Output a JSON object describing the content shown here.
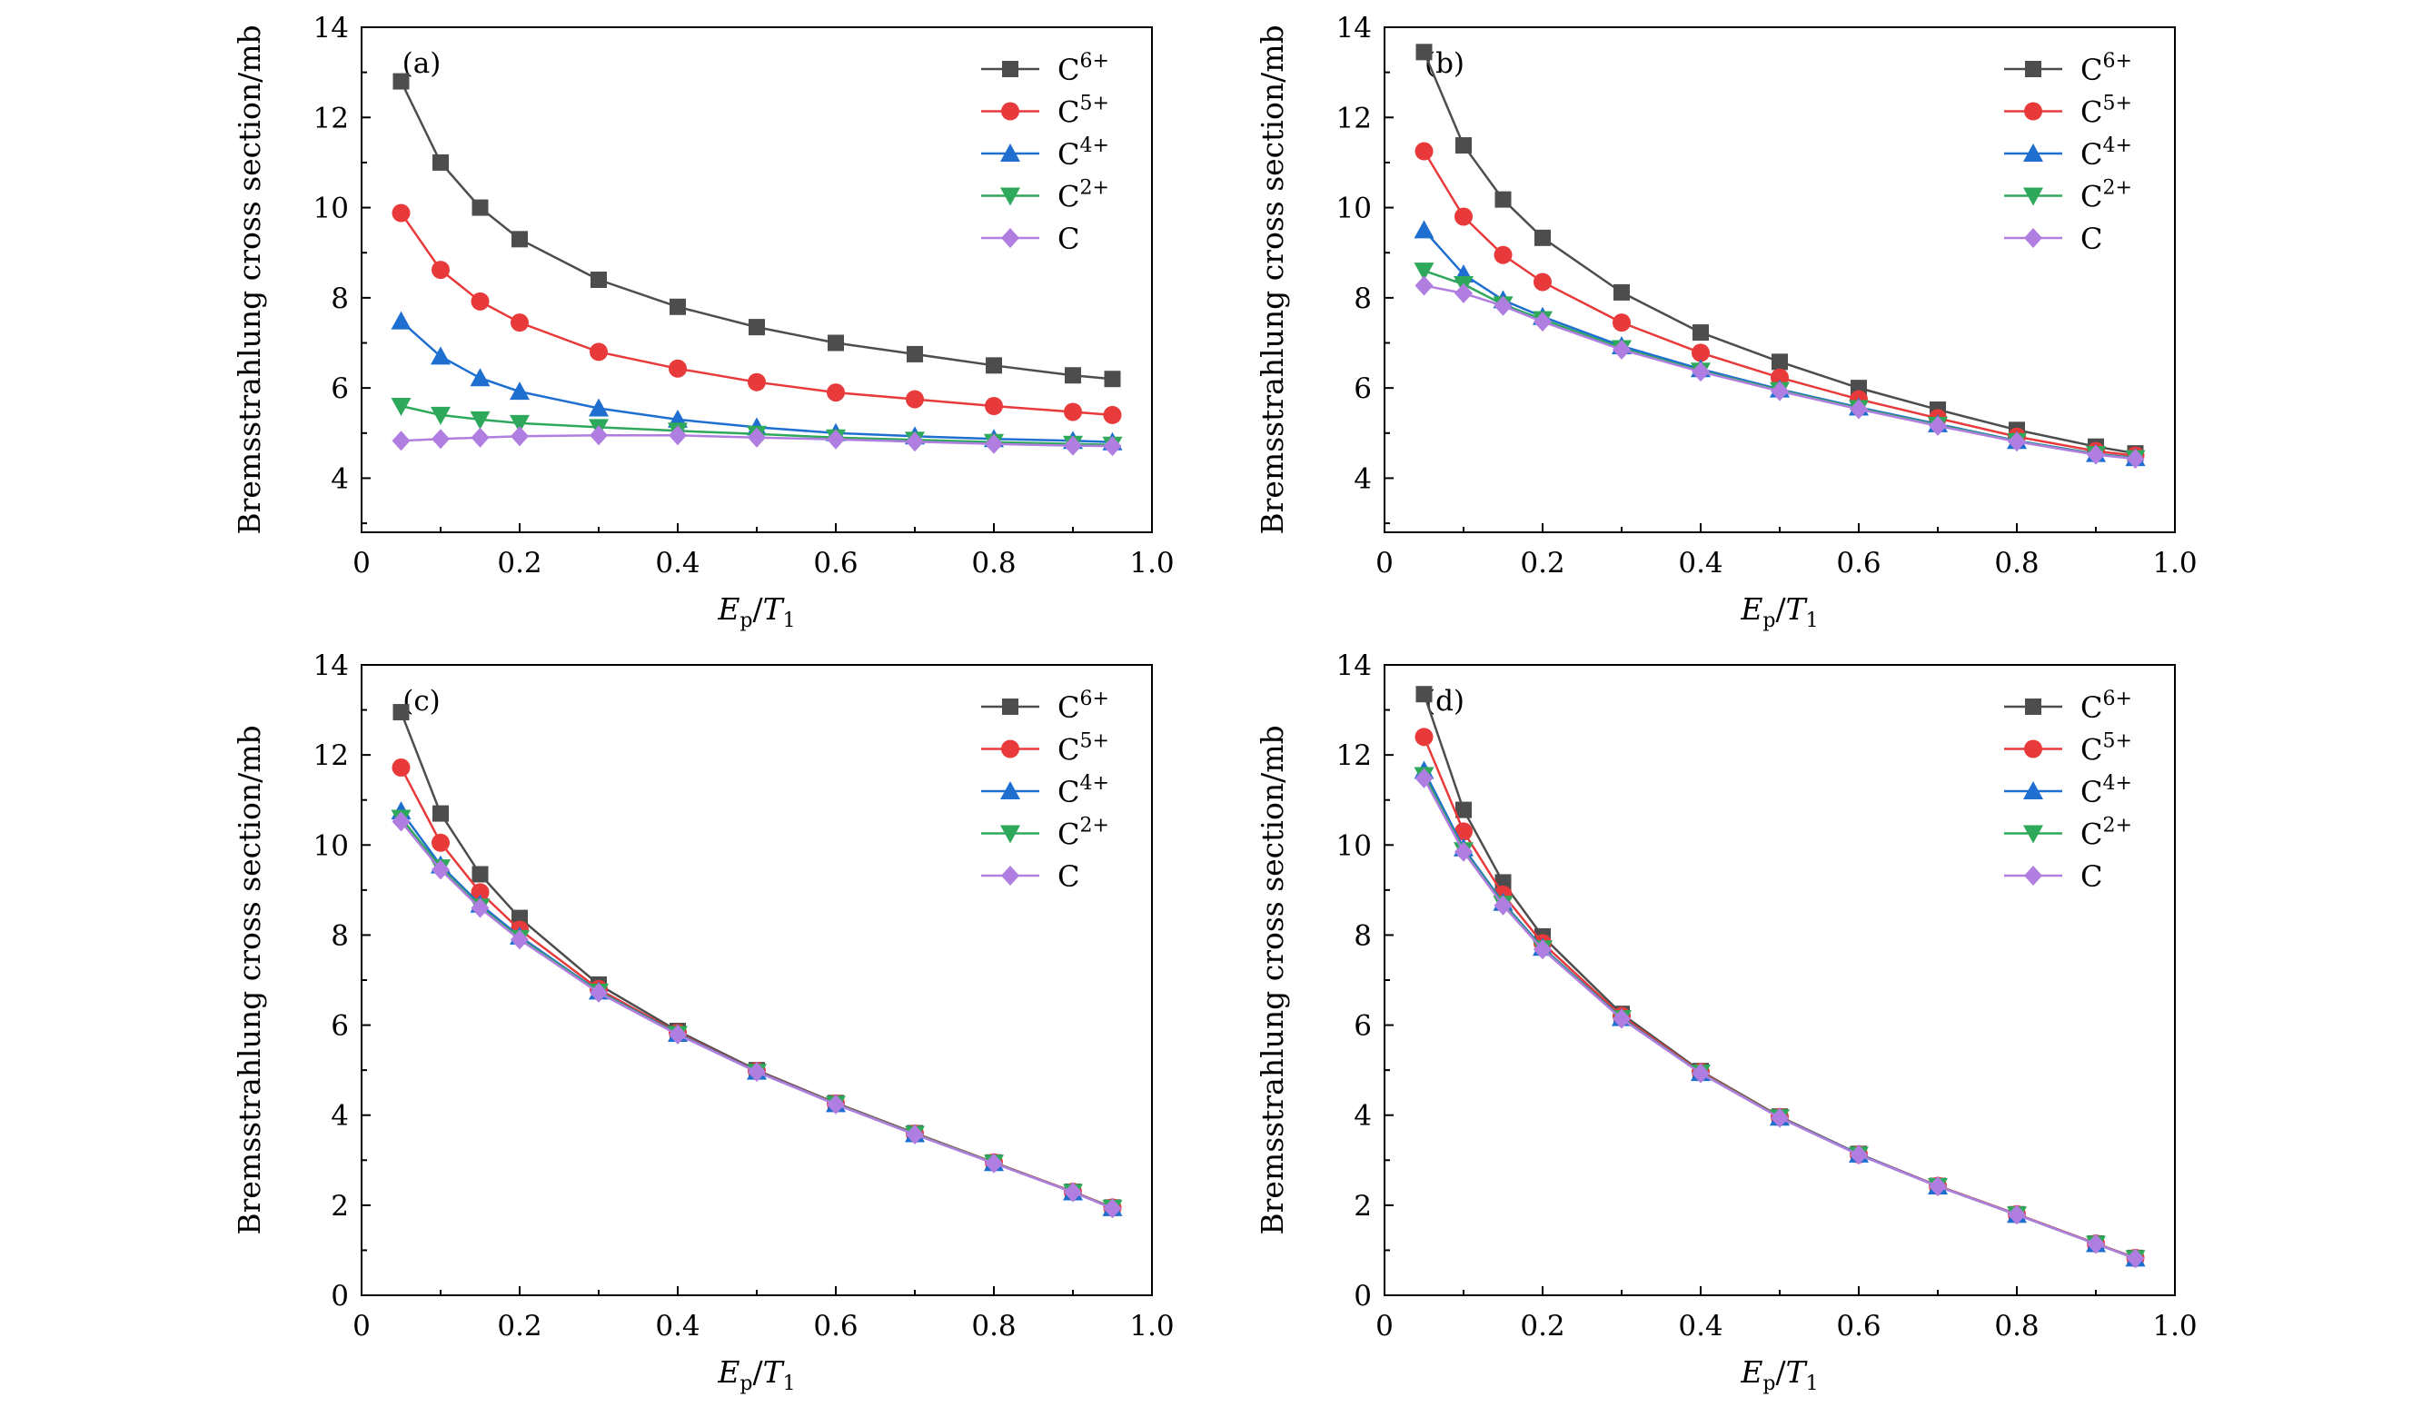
{
  "figure": {
    "panels": [
      "(a)",
      "(b)",
      "(c)",
      "(d)"
    ]
  },
  "chart_data": [
    {
      "type": "line",
      "panel_label": "(a)",
      "xlabel": "Ep/T1",
      "xlabel_parts": {
        "main": "E",
        "main_sub": "p",
        "sep": "/",
        "den": "T",
        "den_sub": "1"
      },
      "ylabel": "Bremsstrahlung cross section/mb",
      "xlim": [
        0,
        1.0
      ],
      "ylim": [
        2.8,
        14
      ],
      "x_ticks": [
        "0",
        "0.2",
        "0.4",
        "0.6",
        "0.8",
        "1.0"
      ],
      "y_ticks": [
        "4",
        "6",
        "8",
        "10",
        "12",
        "14"
      ],
      "legend_position": "top-right",
      "x": [
        0.05,
        0.1,
        0.15,
        0.2,
        0.3,
        0.4,
        0.5,
        0.6,
        0.7,
        0.8,
        0.9,
        0.95
      ],
      "series": [
        {
          "name": "C6+",
          "base": "C",
          "sup": "6+",
          "color": "#4d4d4d",
          "marker": "square",
          "values": [
            12.8,
            11.0,
            10.0,
            9.3,
            8.4,
            7.8,
            7.35,
            7.0,
            6.75,
            6.5,
            6.28,
            6.2
          ]
        },
        {
          "name": "C5+",
          "base": "C",
          "sup": "5+",
          "color": "#e83a3a",
          "marker": "circle",
          "values": [
            9.88,
            8.62,
            7.92,
            7.45,
            6.8,
            6.43,
            6.13,
            5.9,
            5.75,
            5.6,
            5.47,
            5.4
          ]
        },
        {
          "name": "C4+",
          "base": "C",
          "sup": "4+",
          "color": "#1f6fd1",
          "marker": "triangle-up",
          "values": [
            7.48,
            6.7,
            6.22,
            5.92,
            5.55,
            5.3,
            5.13,
            5.0,
            4.93,
            4.87,
            4.83,
            4.8
          ]
        },
        {
          "name": "C2+",
          "base": "C",
          "sup": "2+",
          "color": "#2ea85a",
          "marker": "triangle-down",
          "values": [
            5.6,
            5.4,
            5.3,
            5.22,
            5.13,
            5.05,
            4.98,
            4.9,
            4.85,
            4.8,
            4.76,
            4.74
          ]
        },
        {
          "name": "C",
          "base": "C",
          "sup": "",
          "color": "#b07ee0",
          "marker": "diamond",
          "values": [
            4.83,
            4.87,
            4.9,
            4.93,
            4.95,
            4.95,
            4.9,
            4.86,
            4.81,
            4.76,
            4.72,
            4.71
          ]
        }
      ]
    },
    {
      "type": "line",
      "panel_label": "(b)",
      "xlabel": "Ep/T1",
      "xlabel_parts": {
        "main": "E",
        "main_sub": "p",
        "sep": "/",
        "den": "T",
        "den_sub": "1"
      },
      "ylabel": "Bremsstrahlung cross section/mb",
      "xlim": [
        0,
        1.0
      ],
      "ylim": [
        2.8,
        14
      ],
      "x_ticks": [
        "0",
        "0.2",
        "0.4",
        "0.6",
        "0.8",
        "1.0"
      ],
      "y_ticks": [
        "4",
        "6",
        "8",
        "10",
        "12",
        "14"
      ],
      "legend_position": "top-right",
      "x": [
        0.05,
        0.1,
        0.15,
        0.2,
        0.3,
        0.4,
        0.5,
        0.6,
        0.7,
        0.8,
        0.9,
        0.95
      ],
      "series": [
        {
          "name": "C6+",
          "base": "C",
          "sup": "6+",
          "color": "#4d4d4d",
          "marker": "square",
          "values": [
            13.45,
            11.38,
            10.18,
            9.33,
            8.12,
            7.23,
            6.58,
            6.0,
            5.52,
            5.07,
            4.7,
            4.55
          ]
        },
        {
          "name": "C5+",
          "base": "C",
          "sup": "5+",
          "color": "#e83a3a",
          "marker": "circle",
          "values": [
            11.25,
            9.8,
            8.95,
            8.35,
            7.45,
            6.78,
            6.23,
            5.75,
            5.33,
            4.92,
            4.6,
            4.5
          ]
        },
        {
          "name": "C4+",
          "base": "C",
          "sup": "4+",
          "color": "#1f6fd1",
          "marker": "triangle-up",
          "values": [
            9.5,
            8.52,
            7.95,
            7.58,
            6.93,
            6.42,
            5.97,
            5.57,
            5.2,
            4.83,
            4.54,
            4.45
          ]
        },
        {
          "name": "C2+",
          "base": "C",
          "sup": "2+",
          "color": "#2ea85a",
          "marker": "triangle-down",
          "values": [
            8.6,
            8.3,
            7.85,
            7.52,
            6.88,
            6.38,
            5.95,
            5.55,
            5.18,
            4.82,
            4.53,
            4.44
          ]
        },
        {
          "name": "C",
          "base": "C",
          "sup": "",
          "color": "#b07ee0",
          "marker": "diamond",
          "values": [
            8.27,
            8.1,
            7.82,
            7.47,
            6.85,
            6.36,
            5.93,
            5.53,
            5.16,
            4.81,
            4.52,
            4.43
          ]
        }
      ]
    },
    {
      "type": "line",
      "panel_label": "(c)",
      "xlabel": "Ep/T1",
      "xlabel_parts": {
        "main": "E",
        "main_sub": "p",
        "sep": "/",
        "den": "T",
        "den_sub": "1"
      },
      "ylabel": "Bremsstrahlung cross section/mb",
      "xlim": [
        0,
        1.0
      ],
      "ylim": [
        0,
        14
      ],
      "x_ticks": [
        "0",
        "0.2",
        "0.4",
        "0.6",
        "0.8",
        "1.0"
      ],
      "y_ticks": [
        "0",
        "2",
        "4",
        "6",
        "8",
        "10",
        "12",
        "14"
      ],
      "legend_position": "top-right",
      "x": [
        0.05,
        0.1,
        0.15,
        0.2,
        0.3,
        0.4,
        0.5,
        0.6,
        0.7,
        0.8,
        0.9,
        0.95
      ],
      "series": [
        {
          "name": "C6+",
          "base": "C",
          "sup": "6+",
          "color": "#4d4d4d",
          "marker": "square",
          "values": [
            12.95,
            10.7,
            9.35,
            8.38,
            6.9,
            5.87,
            5.0,
            4.27,
            3.6,
            2.95,
            2.3,
            1.95
          ]
        },
        {
          "name": "C5+",
          "base": "C",
          "sup": "5+",
          "color": "#e83a3a",
          "marker": "circle",
          "values": [
            11.72,
            10.05,
            8.95,
            8.12,
            6.8,
            5.83,
            4.98,
            4.26,
            3.59,
            2.95,
            2.3,
            1.95
          ]
        },
        {
          "name": "C4+",
          "base": "C",
          "sup": "4+",
          "color": "#1f6fd1",
          "marker": "triangle-up",
          "values": [
            10.75,
            9.55,
            8.68,
            7.97,
            6.75,
            5.81,
            4.97,
            4.25,
            3.58,
            2.94,
            2.29,
            1.94
          ]
        },
        {
          "name": "C2+",
          "base": "C",
          "sup": "2+",
          "color": "#2ea85a",
          "marker": "triangle-down",
          "values": [
            10.6,
            9.5,
            8.63,
            7.93,
            6.74,
            5.8,
            4.96,
            4.25,
            3.58,
            2.94,
            2.29,
            1.94
          ]
        },
        {
          "name": "C",
          "base": "C",
          "sup": "",
          "color": "#b07ee0",
          "marker": "diamond",
          "values": [
            10.52,
            9.45,
            8.6,
            7.9,
            6.72,
            5.79,
            4.96,
            4.24,
            3.57,
            2.93,
            2.29,
            1.93
          ]
        }
      ]
    },
    {
      "type": "line",
      "panel_label": "(d)",
      "xlabel": "Ep/T1",
      "xlabel_parts": {
        "main": "E",
        "main_sub": "p",
        "sep": "/",
        "den": "T",
        "den_sub": "1"
      },
      "ylabel": "Bremsstrahlung cross section/mb",
      "xlim": [
        0,
        1.0
      ],
      "ylim": [
        0,
        14
      ],
      "x_ticks": [
        "0",
        "0.2",
        "0.4",
        "0.6",
        "0.8",
        "1.0"
      ],
      "y_ticks": [
        "0",
        "2",
        "4",
        "6",
        "8",
        "10",
        "12",
        "14"
      ],
      "legend_position": "top-right",
      "x": [
        0.05,
        0.1,
        0.15,
        0.2,
        0.3,
        0.4,
        0.5,
        0.6,
        0.7,
        0.8,
        0.9,
        0.95
      ],
      "series": [
        {
          "name": "C6+",
          "base": "C",
          "sup": "6+",
          "color": "#4d4d4d",
          "marker": "square",
          "values": [
            13.35,
            10.78,
            9.17,
            7.97,
            6.25,
            4.98,
            3.97,
            3.14,
            2.43,
            1.8,
            1.15,
            0.83
          ]
        },
        {
          "name": "C5+",
          "base": "C",
          "sup": "5+",
          "color": "#e83a3a",
          "marker": "circle",
          "values": [
            12.4,
            10.3,
            8.9,
            7.82,
            6.2,
            4.96,
            3.96,
            3.13,
            2.43,
            1.8,
            1.15,
            0.83
          ]
        },
        {
          "name": "C4+",
          "base": "C",
          "sup": "4+",
          "color": "#1f6fd1",
          "marker": "triangle-up",
          "values": [
            11.65,
            9.93,
            8.72,
            7.72,
            6.16,
            4.94,
            3.95,
            3.13,
            2.42,
            1.79,
            1.14,
            0.82
          ]
        },
        {
          "name": "C2+",
          "base": "C",
          "sup": "2+",
          "color": "#2ea85a",
          "marker": "triangle-down",
          "values": [
            11.55,
            9.88,
            8.69,
            7.7,
            6.15,
            4.94,
            3.95,
            3.12,
            2.42,
            1.79,
            1.14,
            0.82
          ]
        },
        {
          "name": "C",
          "base": "C",
          "sup": "",
          "color": "#b07ee0",
          "marker": "diamond",
          "values": [
            11.48,
            9.85,
            8.66,
            7.68,
            6.14,
            4.93,
            3.94,
            3.12,
            2.42,
            1.79,
            1.14,
            0.82
          ]
        }
      ]
    }
  ]
}
